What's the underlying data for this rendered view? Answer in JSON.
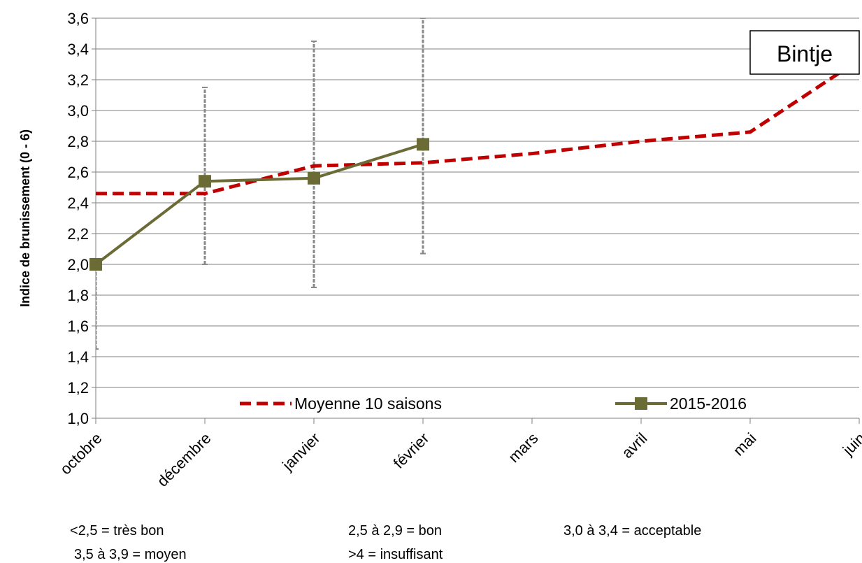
{
  "chart_data": {
    "type": "line",
    "ylabel": "Indice de brunissement (0 - 6)",
    "xlabel": "",
    "ylim": [
      1.0,
      3.6
    ],
    "ytick_step": 0.2,
    "categories": [
      "octobre",
      "décembre",
      "janvier",
      "février",
      "mars",
      "avril",
      "mai",
      "juin"
    ],
    "grid": true,
    "legend_placement": "bottom",
    "annotation": "Bintje",
    "series": [
      {
        "name": "Moyenne 10 saisons",
        "style": "dashed",
        "color": "#c00000",
        "values": [
          2.46,
          2.46,
          2.64,
          2.66,
          2.72,
          2.8,
          2.86,
          3.33
        ]
      },
      {
        "name": "2015-2016",
        "style": "solid-square",
        "color": "#6b6b35",
        "values": [
          2.0,
          2.54,
          2.56,
          2.78,
          null,
          null,
          null,
          null
        ],
        "error_low": [
          1.45,
          2.0,
          1.85,
          2.07,
          null,
          null,
          null,
          null
        ],
        "error_high": [
          2.0,
          3.15,
          3.45,
          3.6,
          null,
          null,
          null,
          null
        ]
      }
    ],
    "notes": [
      "<2,5 = très bon",
      "3,5 à 3,9 = moyen",
      "2,5 à 2,9 = bon",
      ">4 = insuffisant",
      "3,0 à 3,4 = acceptable"
    ]
  }
}
